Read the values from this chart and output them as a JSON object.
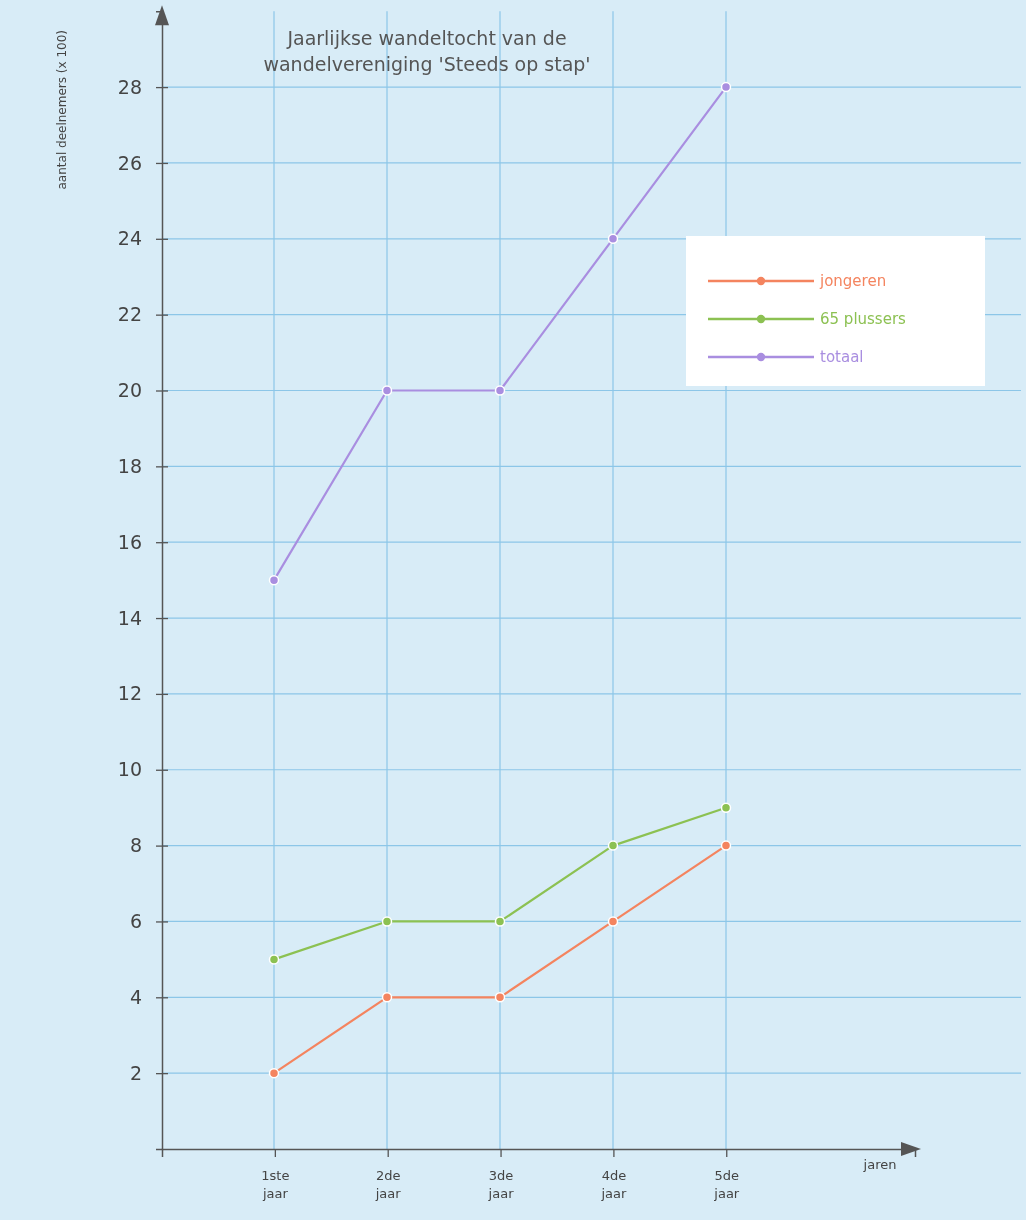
{
  "chart_data": {
    "type": "line",
    "title": "Jaarlijkse wandeltocht van de wandelvereniging 'Steeds op stap'",
    "annotations": [
      "jaren"
    ],
    "ylabel": "aantal deelnemers (x 100)",
    "categories": [
      "1ste jaar",
      "2de jaar",
      "3de jaar",
      "4de jaar",
      "5de jaar"
    ],
    "series": [
      {
        "name": "jongeren",
        "color": "#f4845f",
        "values": [
          2,
          4,
          4,
          6,
          8
        ]
      },
      {
        "name": "65 plussers",
        "color": "#8cc152",
        "values": [
          5,
          6,
          6,
          8,
          9
        ]
      },
      {
        "name": "totaal",
        "color": "#a98ee0",
        "values": [
          15,
          20,
          20,
          24,
          28
        ]
      }
    ],
    "ylim": [
      0,
      30
    ],
    "yticks": [
      2,
      4,
      6,
      8,
      10,
      12,
      14,
      16,
      18,
      20,
      22,
      24,
      26,
      28
    ],
    "grid": true,
    "legend": "top right",
    "marker": "circle",
    "line_style": "solid"
  }
}
